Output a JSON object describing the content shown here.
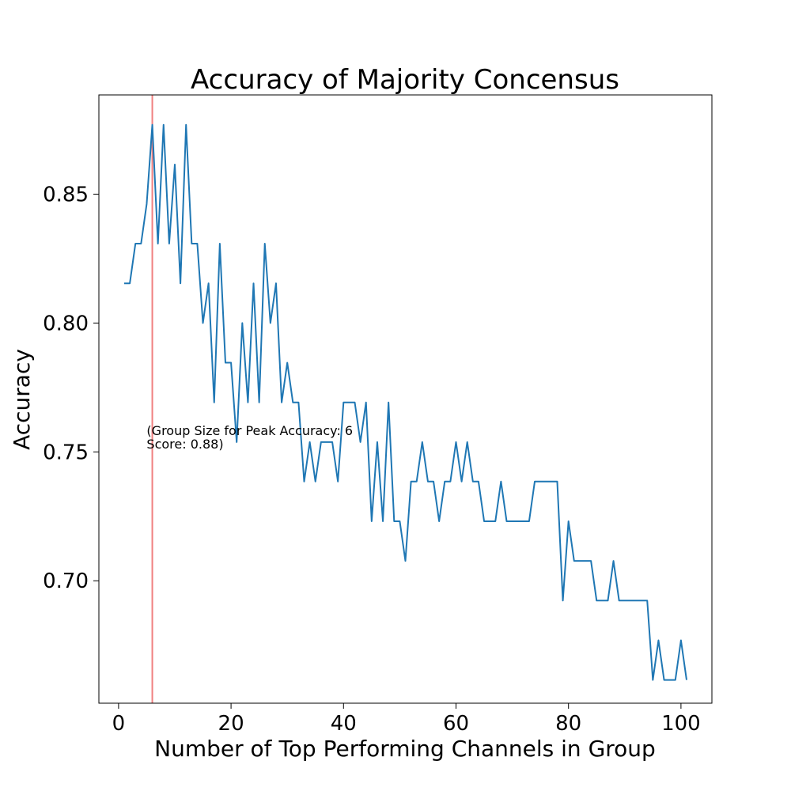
{
  "chart_data": {
    "type": "line",
    "title": "Accuracy of Majority Concensus",
    "xlabel": "Number of Top Performing Channels in Group",
    "ylabel": "Accuracy",
    "xlim": [
      -3.5,
      105.5
    ],
    "ylim": [
      0.6525,
      0.8885
    ],
    "xticks": [
      0,
      20,
      40,
      60,
      80,
      100
    ],
    "xtick_labels": [
      "0",
      "20",
      "40",
      "60",
      "80",
      "100"
    ],
    "yticks": [
      0.7,
      0.75,
      0.8,
      0.85
    ],
    "ytick_labels": [
      "0.70",
      "0.75",
      "0.80",
      "0.85"
    ],
    "grid": false,
    "series": [
      {
        "color": "#1f77b4",
        "x": [
          1,
          2,
          3,
          4,
          5,
          6,
          7,
          8,
          9,
          10,
          11,
          12,
          13,
          14,
          15,
          16,
          17,
          18,
          19,
          20,
          21,
          22,
          23,
          24,
          25,
          26,
          27,
          28,
          29,
          30,
          31,
          32,
          33,
          34,
          35,
          36,
          37,
          38,
          39,
          40,
          41,
          42,
          43,
          44,
          45,
          46,
          47,
          48,
          49,
          50,
          51,
          52,
          53,
          54,
          55,
          56,
          57,
          58,
          59,
          60,
          61,
          62,
          63,
          64,
          65,
          66,
          67,
          68,
          69,
          70,
          71,
          72,
          73,
          74,
          75,
          76,
          77,
          78,
          79,
          80,
          81,
          82,
          83,
          84,
          85,
          86,
          87,
          88,
          89,
          90,
          91,
          92,
          93,
          94,
          95,
          96,
          97,
          98,
          99,
          100,
          101
        ],
        "y": [
          0.8154,
          0.8154,
          0.8308,
          0.8308,
          0.8462,
          0.8769,
          0.8308,
          0.8769,
          0.8308,
          0.8615,
          0.8154,
          0.8769,
          0.8308,
          0.8308,
          0.8,
          0.8154,
          0.7692,
          0.8308,
          0.7846,
          0.7846,
          0.7538,
          0.8,
          0.7692,
          0.8154,
          0.7692,
          0.8308,
          0.8,
          0.8154,
          0.7692,
          0.7846,
          0.7692,
          0.7692,
          0.7385,
          0.7538,
          0.7385,
          0.7538,
          0.7538,
          0.7538,
          0.7385,
          0.7692,
          0.7692,
          0.7692,
          0.7538,
          0.7692,
          0.7231,
          0.7538,
          0.7231,
          0.7692,
          0.7231,
          0.7231,
          0.7077,
          0.7385,
          0.7385,
          0.7538,
          0.7385,
          0.7385,
          0.7231,
          0.7385,
          0.7385,
          0.7538,
          0.7385,
          0.7538,
          0.7385,
          0.7385,
          0.7231,
          0.7231,
          0.7231,
          0.7385,
          0.7231,
          0.7231,
          0.7231,
          0.7231,
          0.7231,
          0.7385,
          0.7385,
          0.7385,
          0.7385,
          0.7385,
          0.6923,
          0.7231,
          0.7077,
          0.7077,
          0.7077,
          0.7077,
          0.6923,
          0.6923,
          0.6923,
          0.7077,
          0.6923,
          0.6923,
          0.6923,
          0.6923,
          0.6923,
          0.6923,
          0.6615,
          0.6769,
          0.6615,
          0.6615,
          0.6615,
          0.6769,
          0.6615
        ]
      }
    ],
    "vline": {
      "x": 6,
      "color": "#f08080"
    },
    "annotation": {
      "x": 5,
      "y": 0.7538,
      "lines": [
        "(Group Size for Peak Accuracy: 6",
        "Score: 0.88)"
      ]
    }
  }
}
